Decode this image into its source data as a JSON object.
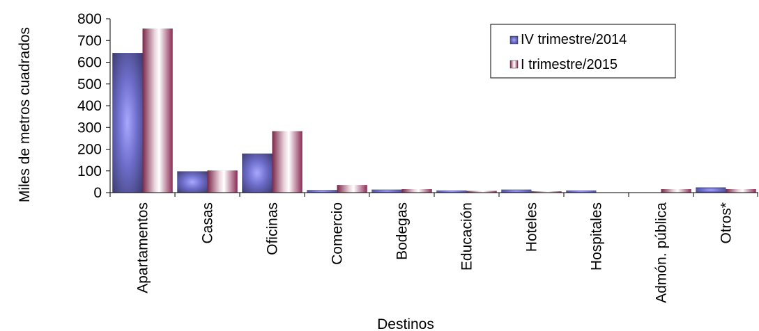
{
  "chart_data": {
    "type": "bar",
    "title": "",
    "xlabel": "Destinos",
    "ylabel": "Miles de metros cuadrados",
    "ylim": [
      0,
      800
    ],
    "yticks": [
      0,
      100,
      200,
      300,
      400,
      500,
      600,
      700,
      800
    ],
    "grid": false,
    "legend_position": "top-right",
    "categories": [
      "Apartamentos",
      "Casas",
      "Oficinas",
      "Comercio",
      "Bodegas",
      "Educación",
      "Hoteles",
      "Hospitales",
      "Admón. pública",
      "Otros*"
    ],
    "series": [
      {
        "name": "IV trimestre/2014",
        "color": "#6a6ac8",
        "values": [
          643,
          98,
          180,
          12,
          14,
          10,
          14,
          10,
          0,
          24
        ]
      },
      {
        "name": "I trimestre/2015",
        "color": "#9b3a5e",
        "values": [
          755,
          102,
          283,
          35,
          16,
          8,
          6,
          0,
          16,
          16
        ]
      }
    ]
  }
}
